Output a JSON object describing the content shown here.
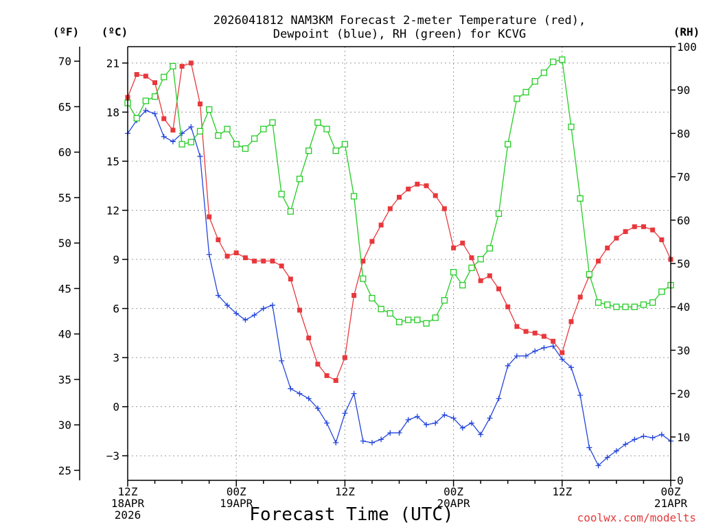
{
  "chart_data": {
    "type": "line",
    "title_line1": "2026041812 NAM3KM Forecast 2-meter Temperature (red),",
    "title_line2": "Dewpoint (blue), RH (green) for KCVG",
    "xlabel": "Forecast Time (UTC)",
    "credit": "coolwx.com/modelts",
    "units": {
      "f": "(ºF)",
      "c": "(ºC)",
      "rh": "(RH)"
    },
    "xlim_hours": [
      0,
      60
    ],
    "ylim_c": [
      -4.5,
      22
    ],
    "ylim_rh": [
      0,
      100
    ],
    "x_ticks": [
      {
        "hour": 0,
        "line1": "12Z",
        "line2": "18APR",
        "line3": "2026"
      },
      {
        "hour": 12,
        "line1": "00Z",
        "line2": "19APR",
        "line3": ""
      },
      {
        "hour": 24,
        "line1": "12Z",
        "line2": "",
        "line3": ""
      },
      {
        "hour": 36,
        "line1": "00Z",
        "line2": "20APR",
        "line3": ""
      },
      {
        "hour": 48,
        "line1": "12Z",
        "line2": "",
        "line3": ""
      },
      {
        "hour": 60,
        "line1": "00Z",
        "line2": "21APR",
        "line3": ""
      }
    ],
    "c_ticks": [
      "21",
      "18",
      "15",
      "12",
      "9",
      "6",
      "3",
      "0",
      "-3"
    ],
    "f_ticks": [
      "70",
      "65",
      "60",
      "55",
      "50",
      "45",
      "40",
      "35",
      "30",
      "25"
    ],
    "rh_ticks": [
      "100",
      "90",
      "80",
      "70",
      "60",
      "50",
      "40",
      "30",
      "20",
      "10",
      "0"
    ],
    "series": [
      {
        "name": "Temperature",
        "color": "#e8383c",
        "marker": "filled-square",
        "values": [
          18.9,
          20.3,
          20.2,
          19.8,
          17.6,
          16.9,
          20.8,
          21.0,
          18.5,
          11.6,
          10.2,
          9.2,
          9.4,
          9.1,
          8.9,
          8.9,
          8.9,
          8.6,
          7.8,
          5.9,
          4.2,
          2.6,
          1.9,
          1.6,
          3.0,
          6.8,
          8.9,
          10.1,
          11.1,
          12.1,
          12.8,
          13.3,
          13.6,
          13.5,
          12.9,
          12.1,
          9.7,
          10.0,
          9.1,
          7.7,
          8.0,
          7.2,
          6.1,
          4.9,
          4.6,
          4.5,
          4.3,
          4.0,
          3.3,
          5.2,
          6.7,
          8.0,
          8.9,
          9.7,
          10.3,
          10.7,
          11.0,
          11.0,
          10.8,
          10.2,
          9.0
        ]
      },
      {
        "name": "Dewpoint",
        "color": "#2244dd",
        "marker": "plus",
        "values": [
          16.7,
          17.5,
          18.1,
          17.9,
          16.5,
          16.2,
          16.7,
          17.1,
          15.3,
          9.3,
          6.8,
          6.2,
          5.7,
          5.3,
          5.6,
          6.0,
          6.2,
          2.8,
          1.1,
          0.8,
          0.5,
          -0.1,
          -1.0,
          -2.2,
          -0.4,
          0.8,
          -2.1,
          -2.2,
          -2.0,
          -1.6,
          -1.6,
          -0.8,
          -0.6,
          -1.1,
          -1.0,
          -0.5,
          -0.7,
          -1.3,
          -1.0,
          -1.7,
          -0.7,
          0.5,
          2.5,
          3.1,
          3.1,
          3.4,
          3.6,
          3.7,
          2.9,
          2.4,
          0.7,
          -2.5,
          -3.6,
          -3.1,
          -2.7,
          -2.3,
          -2.0,
          -1.8,
          -1.9,
          -1.7,
          -2.1
        ]
      },
      {
        "name": "RH",
        "color": "#22cc22",
        "marker": "open-square",
        "values": [
          87.0,
          83.5,
          87.5,
          88.5,
          93.0,
          95.5,
          77.5,
          78.0,
          80.5,
          85.5,
          79.5,
          81.0,
          77.5,
          76.5,
          78.8,
          81.0,
          82.5,
          66.0,
          62.0,
          69.5,
          76.0,
          82.5,
          81.0,
          76.0,
          77.5,
          65.5,
          46.5,
          42.0,
          39.5,
          38.5,
          36.5,
          37.0,
          37.0,
          36.2,
          37.5,
          41.5,
          48.0,
          45.0,
          49.0,
          51.0,
          53.5,
          61.5,
          77.5,
          88.0,
          89.5,
          92.0,
          94.0,
          96.5,
          97.0,
          81.5,
          65.0,
          47.5,
          41.0,
          40.5,
          40.0,
          40.0,
          40.0,
          40.5,
          41.0,
          43.5,
          45.0
        ]
      }
    ]
  }
}
